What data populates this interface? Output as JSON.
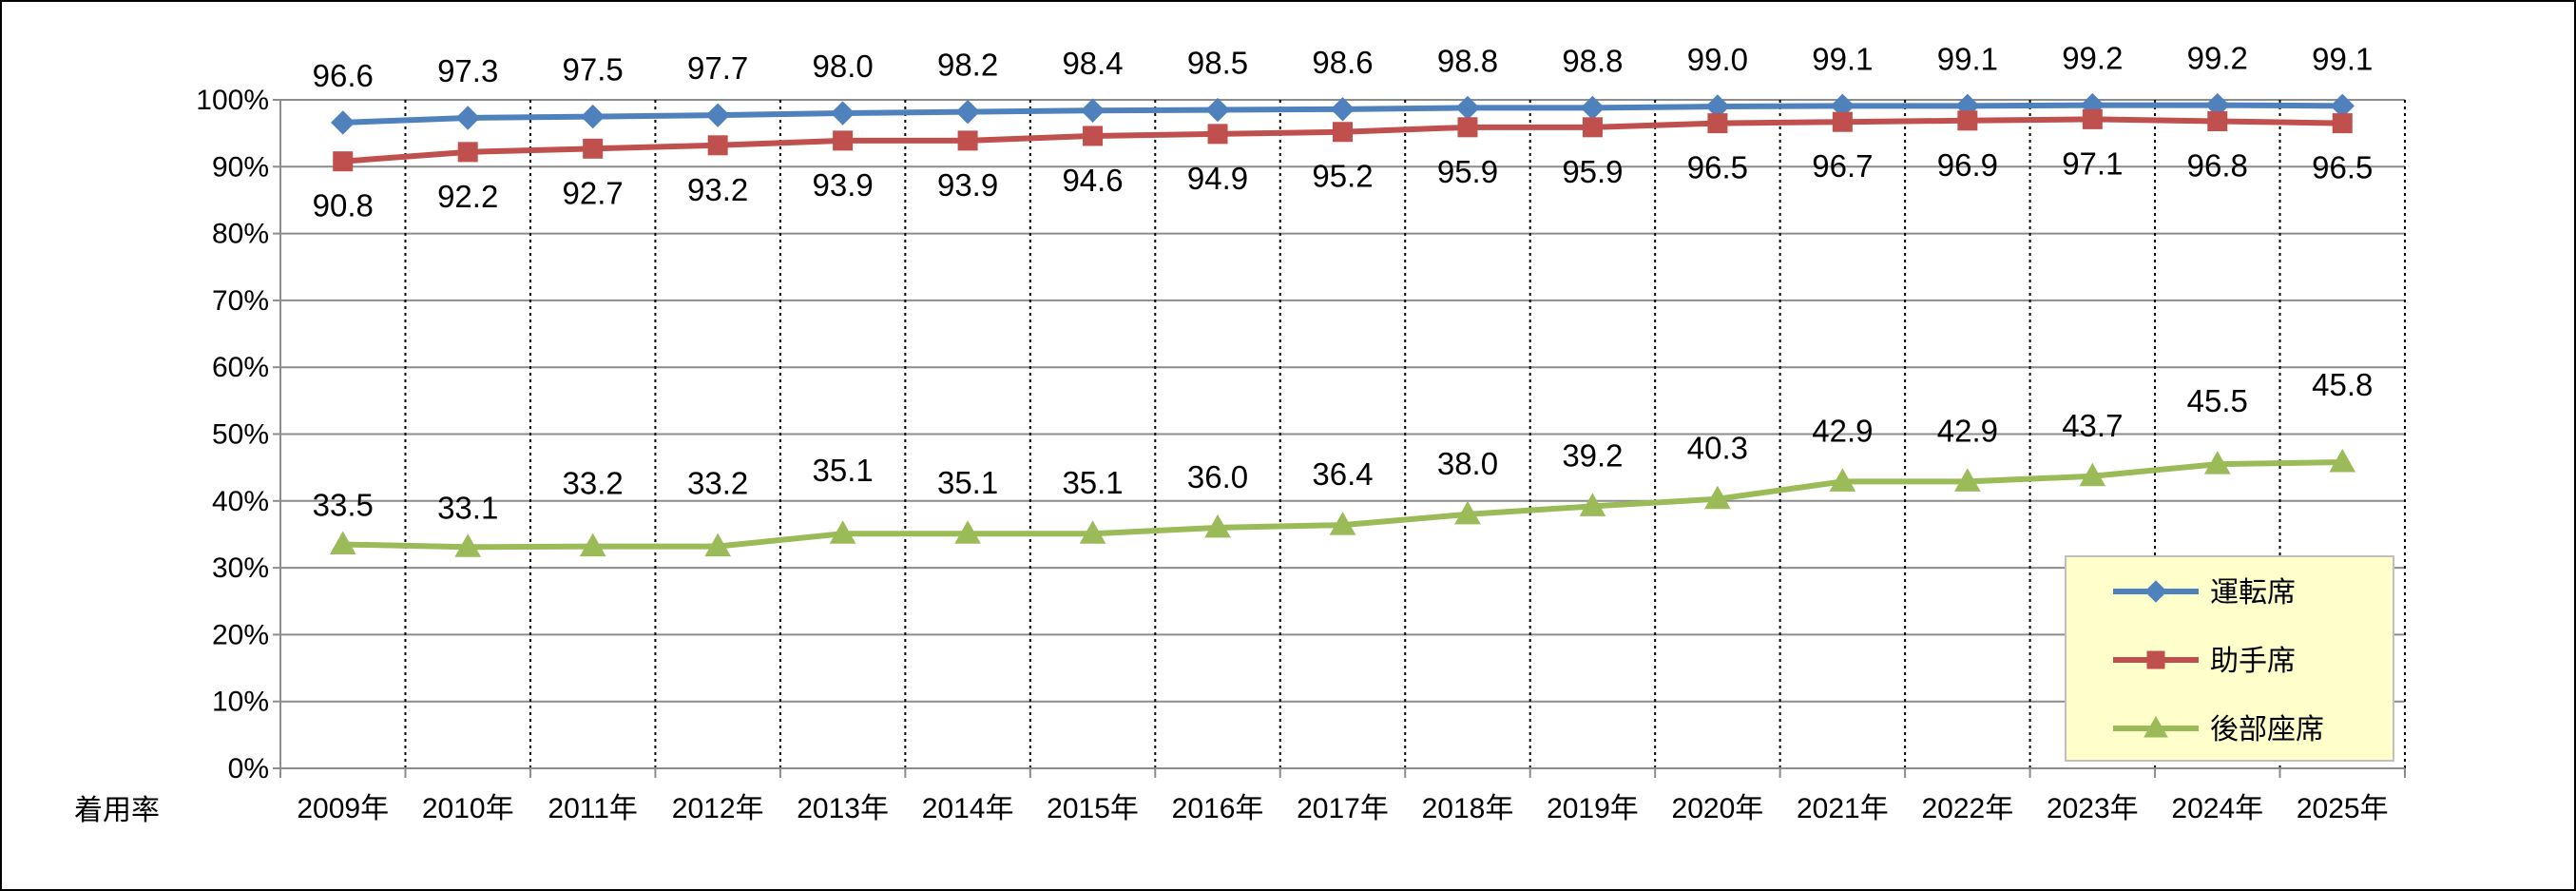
{
  "chart_data": {
    "type": "line",
    "title": "",
    "xlabel": "",
    "ylabel": "着用率",
    "categories": [
      "2009年",
      "2010年",
      "2011年",
      "2012年",
      "2013年",
      "2014年",
      "2015年",
      "2016年",
      "2017年",
      "2018年",
      "2019年",
      "2020年",
      "2021年",
      "2022年",
      "2023年",
      "2024年",
      "2025年"
    ],
    "ylim": [
      0,
      100
    ],
    "y_ticks": [
      "0%",
      "10%",
      "20%",
      "30%",
      "40%",
      "50%",
      "60%",
      "70%",
      "80%",
      "90%",
      "100%"
    ],
    "grid": {
      "horizontal": "solid",
      "vertical": "dotted"
    },
    "legend_position": "bottom-right",
    "series": [
      {
        "name": "運転席",
        "marker": "diamond",
        "color": "#4F81BD",
        "values": [
          96.6,
          97.3,
          97.5,
          97.7,
          98.0,
          98.2,
          98.4,
          98.5,
          98.6,
          98.8,
          98.8,
          99.0,
          99.1,
          99.1,
          99.2,
          99.2,
          99.1
        ],
        "labels": [
          "96.6",
          "97.3",
          "97.5",
          "97.7",
          "98.0",
          "98.2",
          "98.4",
          "98.5",
          "98.6",
          "98.8",
          "98.8",
          "99.0",
          "99.1",
          "99.1",
          "99.2",
          "99.2",
          "99.1"
        ]
      },
      {
        "name": "助手席",
        "marker": "square",
        "color": "#C0504D",
        "values": [
          90.8,
          92.2,
          92.7,
          93.2,
          93.9,
          93.9,
          94.6,
          94.9,
          95.2,
          95.9,
          95.9,
          96.5,
          96.7,
          96.9,
          97.1,
          96.8,
          96.5
        ],
        "labels": [
          "90.8",
          "92.2",
          "92.7",
          "93.2",
          "93.9",
          "93.9",
          "94.6",
          "94.9",
          "95.2",
          "95.9",
          "95.9",
          "96.5",
          "96.7",
          "96.9",
          "97.1",
          "96.8",
          "96.5"
        ]
      },
      {
        "name": "後部座席",
        "marker": "triangle",
        "color": "#9BBB59",
        "values": [
          33.5,
          33.1,
          33.2,
          33.2,
          35.1,
          35.1,
          35.1,
          36.0,
          36.4,
          38.0,
          39.2,
          40.3,
          42.9,
          42.9,
          43.7,
          45.5,
          45.8
        ],
        "labels": [
          "33.5",
          "33.1",
          "33.2",
          "33.2",
          "35.1",
          "35.1",
          "35.1",
          "36.0",
          "36.4",
          "38.0",
          "39.2",
          "40.3",
          "42.9",
          "42.9",
          "43.7",
          "45.5",
          "45.8"
        ]
      }
    ]
  },
  "legend": {
    "background": "#FFFFCC",
    "border": "#BFBFBF"
  }
}
